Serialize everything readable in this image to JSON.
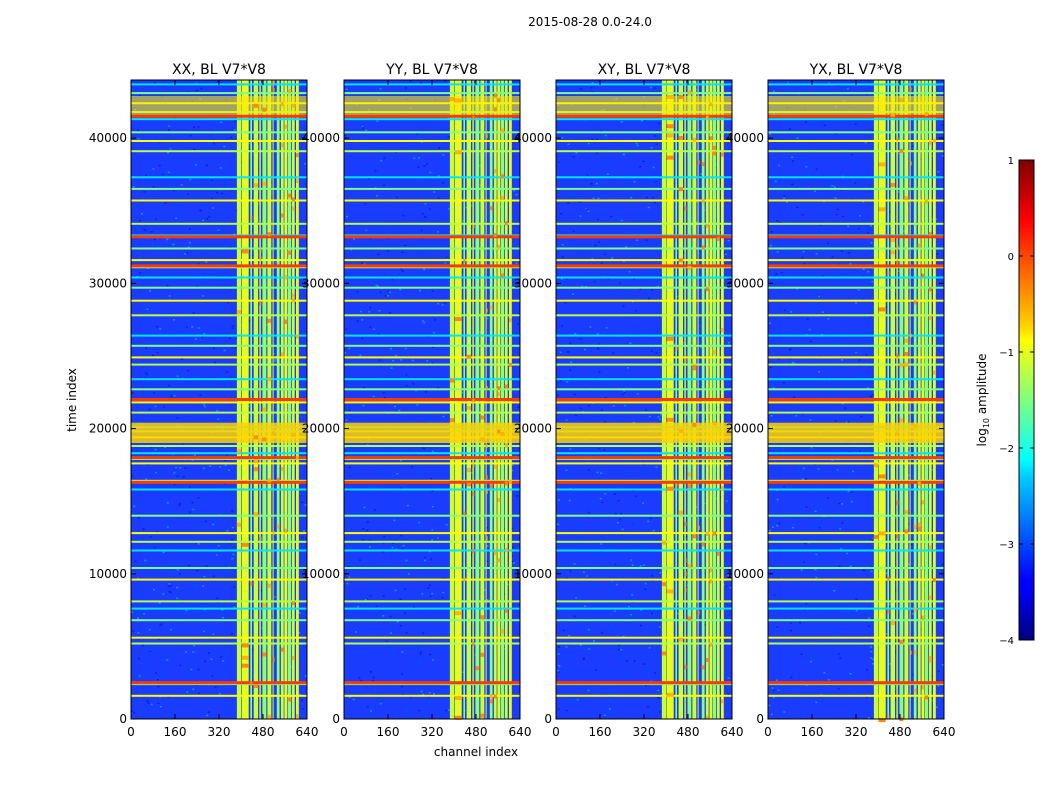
{
  "figure_title": "2015-08-28 0.0-24.0",
  "chart_data": {
    "type": "heatmap",
    "xlabel": "channel index",
    "ylabel": "time index",
    "xlim": [
      0,
      640
    ],
    "ylim": [
      0,
      44000
    ],
    "xticks": [
      0,
      160,
      320,
      480,
      640
    ],
    "yticks": [
      0,
      10000,
      20000,
      30000,
      40000
    ],
    "panels": [
      {
        "name": "XX",
        "title": "XX, BL V7*V8"
      },
      {
        "name": "YY",
        "title": "YY, BL V7*V8"
      },
      {
        "name": "XY",
        "title": "XY, BL V7*V8"
      },
      {
        "name": "YX",
        "title": "YX, BL V7*V8"
      }
    ],
    "colorbar": {
      "label": "log10 amplitude",
      "label_main": "log",
      "label_sub": "10",
      "label_rest": " amplitude",
      "range": [
        -4,
        1
      ],
      "ticks": [
        1,
        0,
        -1,
        -2,
        -3,
        -4
      ],
      "tick_labels": [
        "1",
        "0",
        "−1",
        "−2",
        "−3",
        "−4"
      ]
    },
    "rfi_channel_bands": [
      [
        385,
        400
      ],
      [
        402,
        428
      ],
      [
        434,
        440
      ],
      [
        446,
        462
      ],
      [
        467,
        472
      ],
      [
        478,
        492
      ],
      [
        496,
        510
      ],
      [
        515,
        518
      ],
      [
        530,
        540
      ],
      [
        545,
        555
      ],
      [
        558,
        568
      ],
      [
        570,
        582
      ],
      [
        585,
        595
      ],
      [
        600,
        610
      ]
    ],
    "bright_time_rows": [
      1600,
      2400,
      2500,
      5200,
      5600,
      6800,
      7600,
      8100,
      9600,
      10400,
      11600,
      12200,
      12800,
      14000,
      15800,
      16400,
      17600,
      17900,
      18300,
      18800,
      19400,
      19800,
      20100,
      21100,
      21800,
      22700,
      23400,
      24400,
      24900,
      25700,
      26400,
      27800,
      28800,
      29700,
      30400,
      31100,
      31600,
      32400,
      33300,
      34100,
      35700,
      36500,
      37300,
      39100,
      39800,
      40400,
      41300,
      41800,
      42400,
      43100,
      43700
    ],
    "red_time_rows": [
      2500,
      16300,
      18000,
      22000,
      31200,
      33200,
      41500
    ]
  }
}
